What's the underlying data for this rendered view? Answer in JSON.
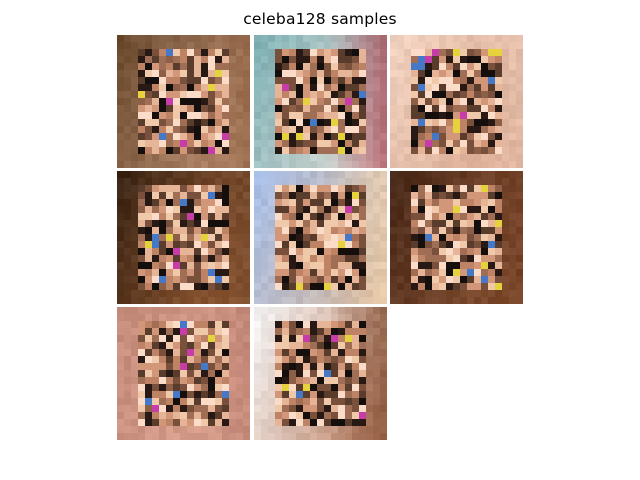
{
  "figure": {
    "title": "celeba128 samples"
  },
  "grid": {
    "rows": 3,
    "cols": 3,
    "image_count": 8
  },
  "samples": [
    {
      "background_colors": [
        "#6b4a2e",
        "#c4967a",
        "#8a5c3c"
      ],
      "center_noise": true
    },
    {
      "background_colors": [
        "#7fb0b4",
        "#e8e2dc",
        "#9a2838"
      ],
      "center_noise": true
    },
    {
      "background_colors": [
        "#f0d2c0",
        "#d8a48a",
        "#e8c6b4"
      ],
      "center_noise": true
    },
    {
      "background_colors": [
        "#3a2414",
        "#a2643a",
        "#6a4228"
      ],
      "center_noise": true
    },
    {
      "background_colors": [
        "#a8bfe8",
        "#d6b69a",
        "#f0d4b0"
      ],
      "center_noise": true
    },
    {
      "background_colors": [
        "#4a2a1a",
        "#8e5634",
        "#6a3a22"
      ],
      "center_noise": true
    },
    {
      "background_colors": [
        "#c48a7a",
        "#e0a694",
        "#b47868"
      ],
      "center_noise": true
    },
    {
      "background_colors": [
        "#f4f4f4",
        "#b87a5c",
        "#7a4a30"
      ],
      "center_noise": true
    }
  ]
}
